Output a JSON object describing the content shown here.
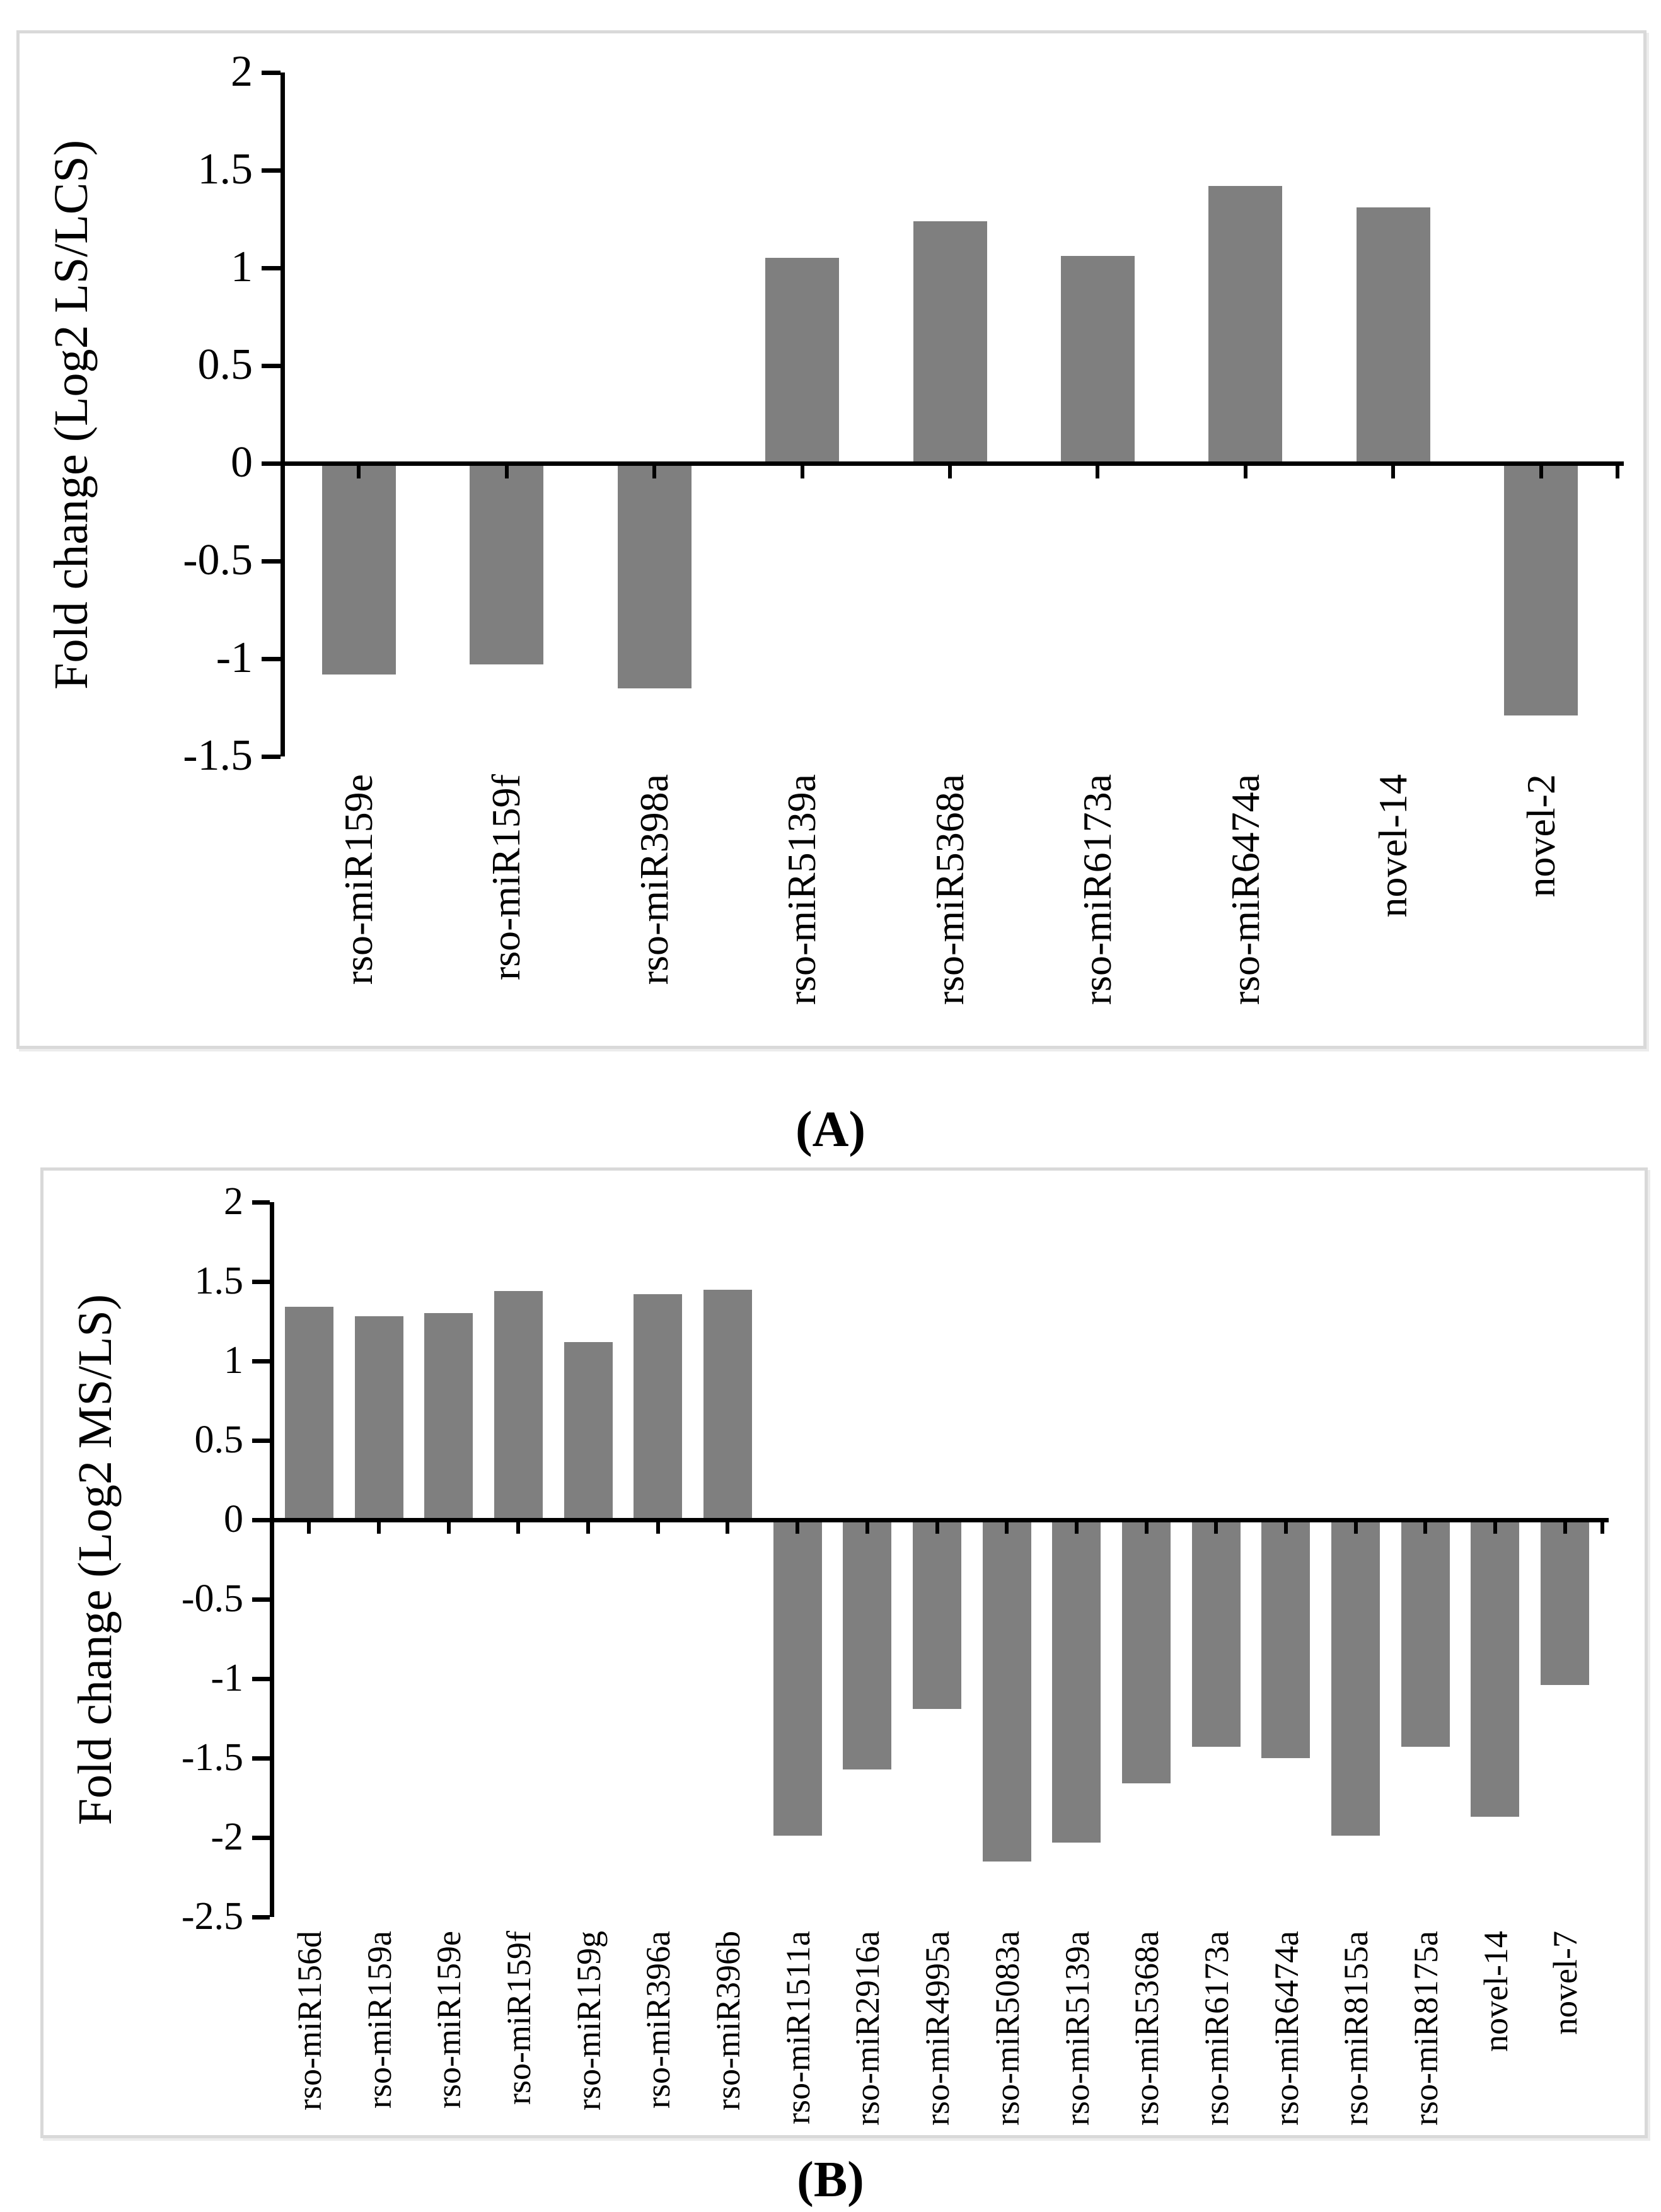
{
  "colors": {
    "bar": "#7f7f7f",
    "axis": "#000000",
    "panel_border": "#d9d9d9",
    "background": "#ffffff"
  },
  "captions": {
    "panel_a": "(A)",
    "panel_b": "(B)"
  },
  "chart_data": [
    {
      "type": "bar",
      "panel": "A",
      "title": "(A)",
      "xlabel": "",
      "ylabel": "Fold change (Log2 LS/LCS)",
      "ylim": [
        -1.5,
        2
      ],
      "ytick_step": 0.5,
      "yticks": [
        "2",
        "1.5",
        "1",
        "0.5",
        "0",
        "-0.5",
        "-1",
        "-1.5"
      ],
      "grid": false,
      "legend": false,
      "bar_color": "#7f7f7f",
      "categories": [
        "rso-miR159e",
        "rso-miR159f",
        "rso-miR398a",
        "rso-miR5139a",
        "rso-miR5368a",
        "rso-miR6173a",
        "rso-miR6474a",
        "novel-14",
        "novel-2"
      ],
      "values": [
        -1.08,
        -1.03,
        -1.15,
        1.05,
        1.24,
        1.06,
        1.42,
        1.31,
        -1.29
      ]
    },
    {
      "type": "bar",
      "panel": "B",
      "title": "(B)",
      "xlabel": "",
      "ylabel": "Fold change (Log2 MS/LS)",
      "ylim": [
        -2.5,
        2
      ],
      "ytick_step": 0.5,
      "yticks": [
        "2",
        "1.5",
        "1",
        "0.5",
        "0",
        "-0.5",
        "-1",
        "-1.5",
        "-2",
        "-2.5"
      ],
      "grid": false,
      "legend": false,
      "bar_color": "#7f7f7f",
      "categories": [
        "rso-miR156d",
        "rso-miR159a",
        "rso-miR159e",
        "rso-miR159f",
        "rso-miR159g",
        "rso-miR396a",
        "rso-miR396b",
        "rso-miR1511a",
        "rso-miR2916a",
        "rso-miR4995a",
        "rso-miR5083a",
        "rso-miR5139a",
        "rso-miR5368a",
        "rso-miR6173a",
        "rso-miR6474a",
        "rso-miR8155a",
        "rso-miR8175a",
        "novel-14",
        "novel-7"
      ],
      "values": [
        1.34,
        1.28,
        1.3,
        1.44,
        1.12,
        1.42,
        1.45,
        -1.99,
        -1.57,
        -1.19,
        -2.15,
        -2.03,
        -1.66,
        -1.43,
        -1.5,
        -1.99,
        -1.43,
        -1.87,
        -1.04
      ]
    }
  ]
}
